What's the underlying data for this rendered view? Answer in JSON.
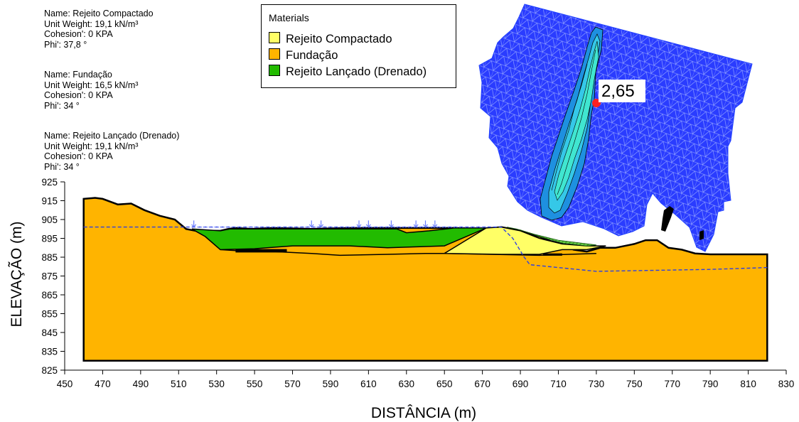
{
  "materials": [
    {
      "name": "Name: Rejeito Compactado",
      "unit_weight": "Unit Weight: 19,1 kN/m³",
      "cohesion": "Cohesion': 0 KPA",
      "phi": "Phi': 37,8 °"
    },
    {
      "name": "Name: Fundação",
      "unit_weight": "Unit Weight: 16,5 kN/m³",
      "cohesion": "Cohesion': 0 KPA",
      "phi": "Phi': 34 °"
    },
    {
      "name": "Name: Rejeito Lançado (Drenado)",
      "unit_weight": "Unit Weight: 19,1 kN/m³",
      "cohesion": "Cohesion': 0 KPA",
      "phi": "Phi': 34 °"
    }
  ],
  "legend": {
    "title": "Materials",
    "items": [
      {
        "label": "Rejeito Compactado",
        "color": "#ffff66"
      },
      {
        "label": "Fundação",
        "color": "#ffb400"
      },
      {
        "label": "Rejeito Lançado (Drenado)",
        "color": "#22bb00"
      }
    ]
  },
  "axes": {
    "xlabel": "DISTÂNCIA (m)",
    "ylabel": "ELEVAÇÃO (m)",
    "xticks": [
      450,
      470,
      490,
      510,
      530,
      550,
      570,
      590,
      610,
      630,
      650,
      670,
      690,
      710,
      730,
      750,
      770,
      790,
      810,
      830
    ],
    "yticks": [
      825,
      835,
      845,
      855,
      865,
      875,
      885,
      895,
      905,
      915,
      925
    ],
    "xrange": [
      450,
      830
    ],
    "yrange": [
      825,
      925
    ]
  },
  "factor_of_safety": "2,65",
  "colors": {
    "foundation": "#ffb400",
    "compacted": "#ffff66",
    "tailings": "#22bb00",
    "grid": "#2040ff",
    "phreatic": "#3040e0"
  },
  "profiles": {
    "foundation_top": [
      [
        460,
        916
      ],
      [
        466,
        916.5
      ],
      [
        470,
        916
      ],
      [
        478,
        913
      ],
      [
        485,
        913.5
      ],
      [
        492,
        910
      ],
      [
        500,
        907
      ],
      [
        508,
        905
      ],
      [
        514,
        900
      ],
      [
        519,
        899
      ],
      [
        525,
        899
      ],
      [
        532,
        899
      ],
      [
        536,
        900
      ],
      [
        540,
        900.5
      ],
      [
        548,
        900
      ],
      [
        560,
        900.5
      ],
      [
        580,
        900
      ],
      [
        600,
        900.5
      ],
      [
        620,
        900.5
      ],
      [
        640,
        900.5
      ],
      [
        655,
        900.5
      ],
      [
        670,
        900
      ],
      [
        680,
        901
      ],
      [
        690,
        899
      ],
      [
        700,
        896
      ],
      [
        706,
        893.5
      ],
      [
        712,
        892
      ],
      [
        718,
        889
      ],
      [
        725,
        888
      ],
      [
        732,
        890
      ],
      [
        740,
        890
      ],
      [
        750,
        892
      ],
      [
        756,
        894
      ],
      [
        762,
        894
      ],
      [
        768,
        890
      ],
      [
        775,
        889
      ],
      [
        782,
        887
      ],
      [
        790,
        886.5
      ],
      [
        820,
        886.5
      ]
    ],
    "foundation_inner": [
      [
        517,
        900
      ],
      [
        524,
        896
      ],
      [
        532,
        889
      ],
      [
        540,
        888.5
      ],
      [
        560,
        888
      ],
      [
        580,
        887
      ],
      [
        595,
        886
      ],
      [
        620,
        886.5
      ],
      [
        640,
        887
      ],
      [
        650,
        887
      ],
      [
        700,
        886
      ],
      [
        730,
        887
      ]
    ],
    "tailings_outline": [
      [
        517,
        900
      ],
      [
        532,
        899
      ],
      [
        537,
        900
      ],
      [
        560,
        900
      ],
      [
        600,
        900
      ],
      [
        625,
        900
      ],
      [
        630,
        898
      ],
      [
        642,
        899
      ],
      [
        655,
        900.5
      ],
      [
        672,
        900.5
      ],
      [
        650,
        891
      ],
      [
        620,
        890
      ],
      [
        600,
        891
      ],
      [
        585,
        891
      ],
      [
        570,
        891
      ],
      [
        550,
        889.5
      ],
      [
        532,
        889
      ],
      [
        524,
        896
      ]
    ],
    "compacted_outline": [
      [
        650,
        887
      ],
      [
        672,
        900.5
      ],
      [
        680,
        901
      ],
      [
        690,
        899
      ],
      [
        700,
        895
      ],
      [
        712,
        892
      ],
      [
        725,
        891
      ],
      [
        735,
        891
      ],
      [
        725,
        889
      ],
      [
        712,
        889
      ],
      [
        700,
        886.5
      ],
      [
        680,
        886.5
      ]
    ],
    "phreatic_line": [
      [
        460,
        901
      ],
      [
        520,
        901
      ],
      [
        600,
        901
      ],
      [
        680,
        901
      ],
      [
        686,
        895
      ],
      [
        692,
        885
      ],
      [
        695,
        881
      ],
      [
        730,
        877.5
      ],
      [
        790,
        878.5
      ],
      [
        820,
        879.5
      ]
    ],
    "loads_x": [
      518,
      580,
      585,
      605,
      610,
      622,
      635,
      640,
      645
    ]
  }
}
